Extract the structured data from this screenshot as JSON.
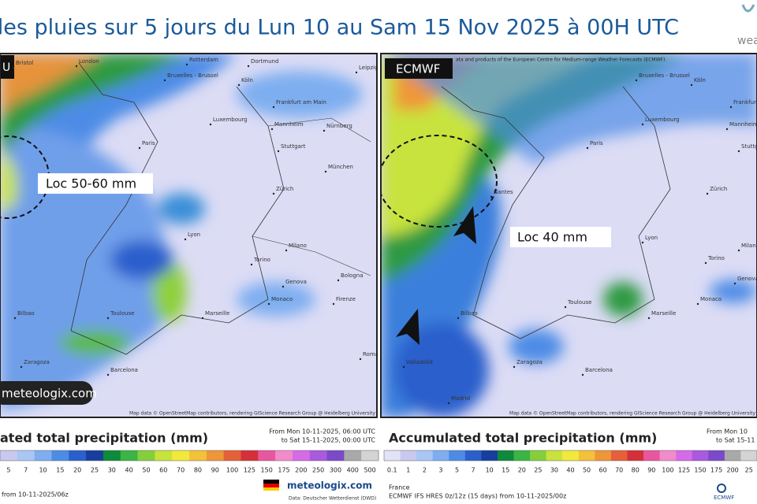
{
  "header": {
    "title": "l des pluies sur 5 jours du Lun 10 au Sam 15 Nov 2025 à 00H UTC",
    "logo": "weat"
  },
  "left": {
    "badge": "U",
    "annotation": "Loc 50-60 mm",
    "watermark": "meteologix.com",
    "attribution": "Map data © OpenStreetMap contributors, rendering GIScience Research Group @ Heidelberg University",
    "cities": [
      "Bristol",
      "London",
      "Rotterdam",
      "Dortmund",
      "Bruxelles - Brussel",
      "Köln",
      "Leipzig",
      "Frankfurt am Main",
      "Luxembourg",
      "Paris",
      "Mannheim",
      "Nürnberg",
      "Stuttgart",
      "München",
      "Zürich",
      "Lyon",
      "Torino",
      "Milano",
      "Genova",
      "Bologna",
      "Monaco",
      "Firenze",
      "Marseille",
      "Toulouse",
      "Bilbao",
      "Zaragoza",
      "Barcelona",
      "Roma"
    ]
  },
  "right": {
    "badge": "ECMWF",
    "annotation": "Loc 40 mm",
    "attribution_top": "ata and products of the European Centre for Medium-range Weather Forecasts (ECMWF).",
    "attribution": "Map data © OpenStreetMap contributors, rendering GIScience Research Group @ Heidelberg University",
    "cities": [
      "Bruxelles - Brussel",
      "Köln",
      "Frankfurt am Main",
      "Luxembourg",
      "Mannheim",
      "Paris",
      "Stuttgart",
      "Nantes",
      "Zürich",
      "Lyon",
      "Torino",
      "Milano",
      "Genova",
      "Monaco",
      "Marseille",
      "Toulouse",
      "Bilbao",
      "Zaragoza",
      "Valladolid",
      "Barcelona",
      "Madrid"
    ]
  },
  "legend_left": {
    "title": "ated total precipitation (mm)",
    "from": "From Mon 10-11-2025, 06:00 UTC",
    "to": "to Sat 15-11-2025, 00:00 UTC",
    "scale": [
      "5",
      "7",
      "10",
      "15",
      "20",
      "25",
      "30",
      "40",
      "50",
      "60",
      "70",
      "80",
      "90",
      "100",
      "125",
      "150",
      "175",
      "200",
      "250",
      "300",
      "400",
      "500"
    ],
    "colors": [
      "#c9c9f0",
      "#a9c6f4",
      "#7eaef0",
      "#4d8ce6",
      "#2a5fcc",
      "#173e9e",
      "#0e8a3c",
      "#3bb544",
      "#86cf3c",
      "#c8e33c",
      "#f1ea3c",
      "#f3c23a",
      "#ef9638",
      "#e6603a",
      "#d5303a",
      "#e8579e",
      "#f28bcb",
      "#d66be6",
      "#a95ade",
      "#7b49c9",
      "#a9a9a9",
      "#d4d4d4"
    ],
    "run": "from 10-11-2025/06z",
    "brand": "meteologix.com",
    "source": "Data: Deutscher Wetterdienst (DWD)"
  },
  "legend_right": {
    "title": "Accumulated total precipitation (mm)",
    "from": "From Mon 10",
    "to": "to Sat 15-11",
    "scale": [
      "0.1",
      "1",
      "2",
      "3",
      "5",
      "7",
      "10",
      "15",
      "20",
      "25",
      "30",
      "40",
      "50",
      "60",
      "70",
      "80",
      "90",
      "100",
      "125",
      "150",
      "175",
      "200",
      "25"
    ],
    "colors": [
      "#e3e3f7",
      "#c9c9f0",
      "#a9c6f4",
      "#7eaef0",
      "#4d8ce6",
      "#2a5fcc",
      "#173e9e",
      "#0e8a3c",
      "#3bb544",
      "#86cf3c",
      "#c8e33c",
      "#f1ea3c",
      "#f3c23a",
      "#ef9638",
      "#e6603a",
      "#d5303a",
      "#e8579e",
      "#f28bcb",
      "#d66be6",
      "#a95ade",
      "#7b49c9",
      "#a9a9a9",
      "#d4d4d4"
    ],
    "region": "France",
    "run": "ECMWF IFS HRES 0z/12z (15 days) from 10-11-2025/00z",
    "brand": "ECMWF"
  }
}
